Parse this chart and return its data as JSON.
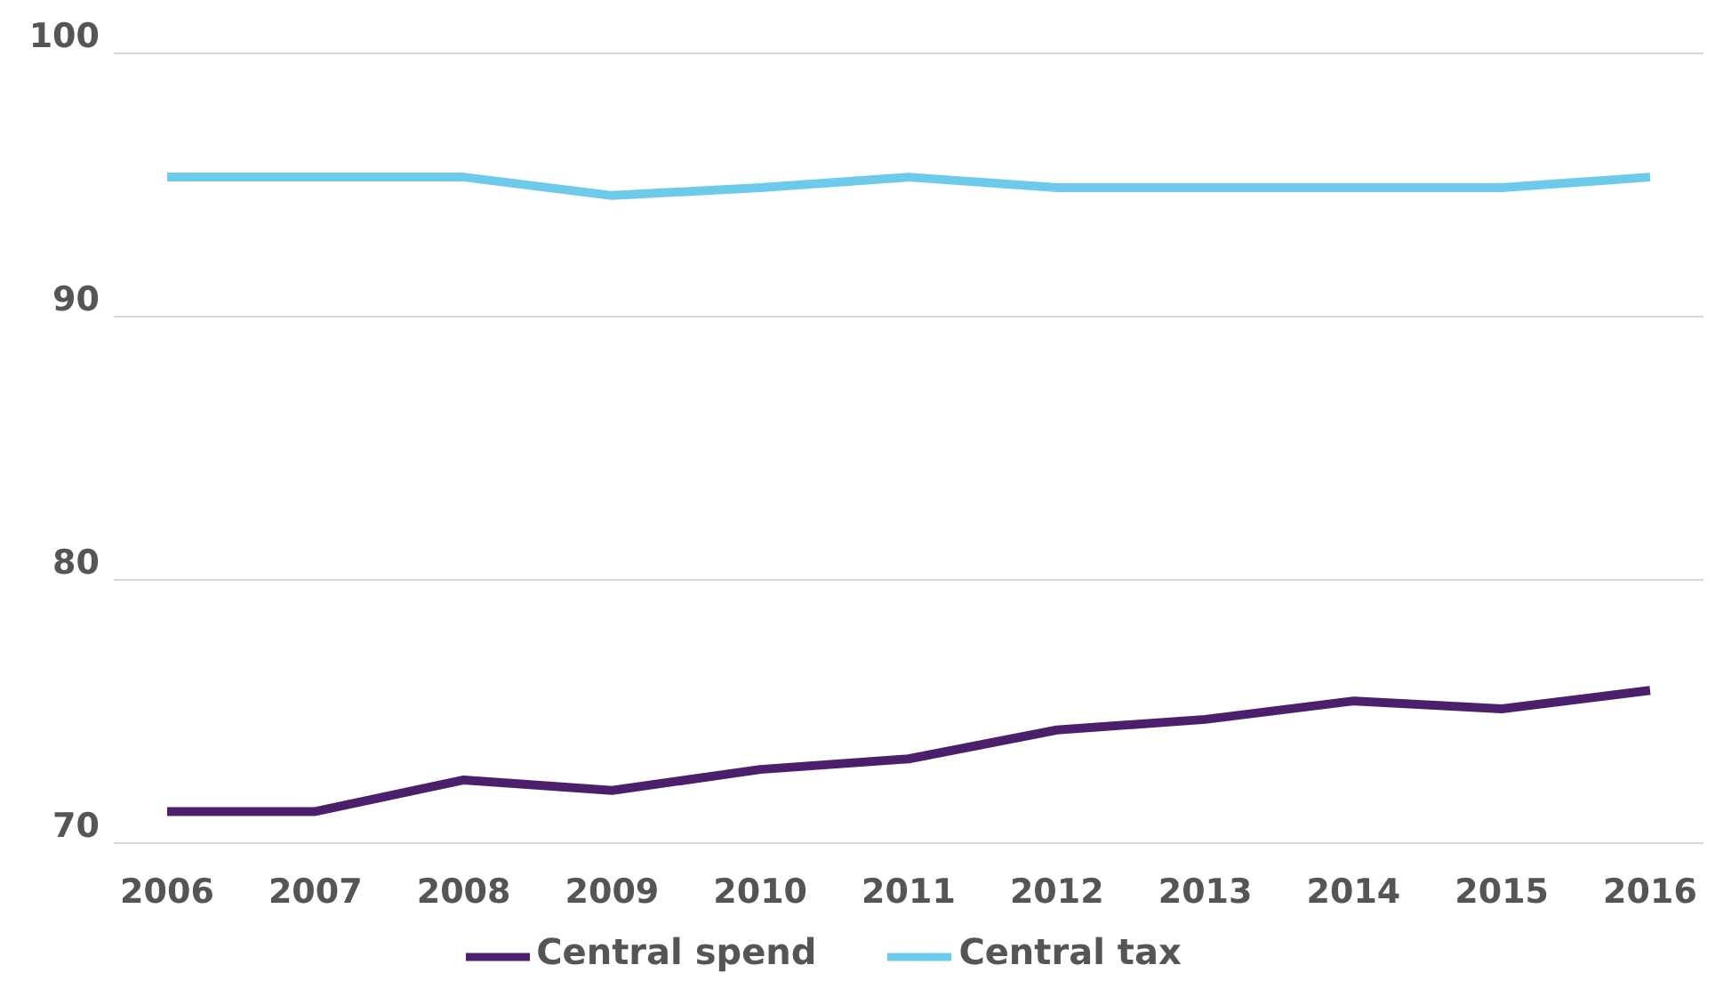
{
  "chart_data": {
    "type": "line",
    "categories": [
      "2006",
      "2007",
      "2008",
      "2009",
      "2010",
      "2011",
      "2012",
      "2013",
      "2014",
      "2015",
      "2016"
    ],
    "series": [
      {
        "name": "Central tax",
        "color": "#6dcaeb",
        "values": [
          95.3,
          95.3,
          95.3,
          94.6,
          94.9,
          95.3,
          94.9,
          94.9,
          94.9,
          94.9,
          95.3
        ]
      },
      {
        "name": "Central spend",
        "color": "#4b1f6b",
        "values": [
          71.2,
          71.2,
          72.4,
          72.0,
          72.8,
          73.2,
          74.3,
          74.7,
          75.4,
          75.1,
          75.8
        ]
      }
    ],
    "ylim": [
      70,
      100
    ],
    "yticks": [
      70,
      80,
      90,
      100
    ],
    "grid": "y",
    "legend": "bottom",
    "marker": "none",
    "line_style": "solid"
  }
}
